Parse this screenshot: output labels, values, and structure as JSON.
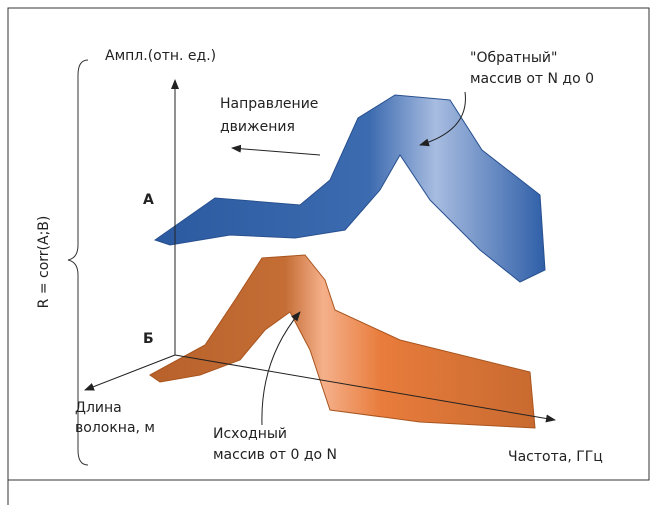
{
  "axes": {
    "amplitude": "Ампл.(отн. ед.)",
    "length": [
      "Длина",
      "волокна, м"
    ],
    "frequency": "Частота, ГГц"
  },
  "correlation": "R = corr(A;B)",
  "surface_a": {
    "label": "А",
    "note": [
      "\"Обратный\"",
      "массив от N до 0"
    ]
  },
  "surface_b": {
    "label": "Б",
    "note": [
      "Исходный",
      "массив от 0 до N"
    ]
  },
  "direction": [
    "Направление",
    "движения"
  ]
}
